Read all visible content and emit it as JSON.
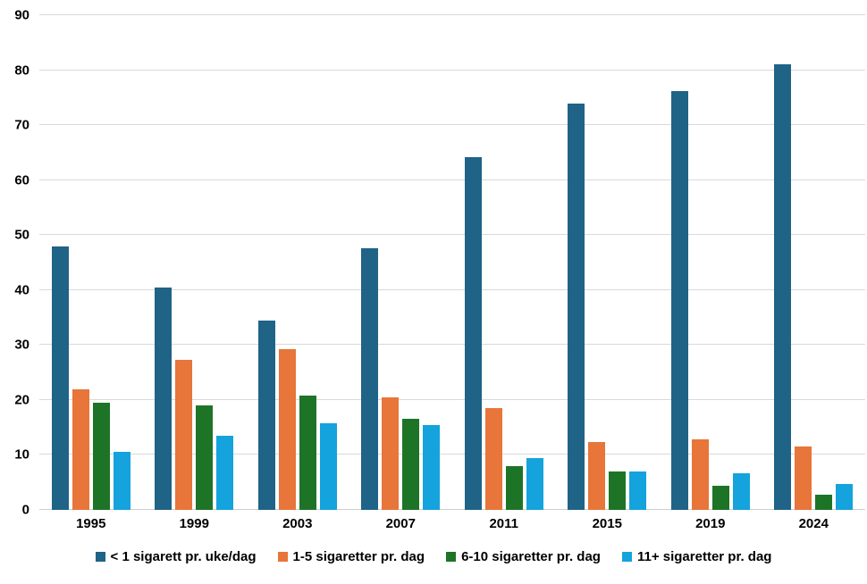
{
  "chart_data": {
    "type": "bar",
    "title": "",
    "categories": [
      "1995",
      "1999",
      "2003",
      "2007",
      "2011",
      "2015",
      "2019",
      "2024"
    ],
    "series": [
      {
        "name": "< 1 sigarett pr. uke/dag",
        "color": "#1f6387",
        "values": [
          48,
          40.5,
          34.4,
          47.6,
          64.2,
          74,
          76.2,
          81
        ]
      },
      {
        "name": "1-5 sigaretter pr. dag",
        "color": "#e8753a",
        "values": [
          22,
          27.3,
          29.3,
          20.5,
          18.5,
          12.4,
          12.8,
          11.5
        ]
      },
      {
        "name": "6-10 sigaretter pr. dag",
        "color": "#1e7426",
        "values": [
          19.5,
          19,
          20.8,
          16.6,
          8,
          7,
          4.4,
          2.8
        ]
      },
      {
        "name": "11+ sigaretter pr. dag",
        "color": "#14a3dc",
        "values": [
          10.5,
          13.5,
          15.7,
          15.4,
          9.4,
          7,
          6.6,
          4.7
        ]
      }
    ],
    "xlabel": "",
    "ylabel": "",
    "ylim": [
      0,
      90
    ],
    "ytick_step": 10,
    "grid": true,
    "legend_position": "bottom",
    "gridline_color": "#d9d9d9",
    "text_color": "#000000"
  }
}
